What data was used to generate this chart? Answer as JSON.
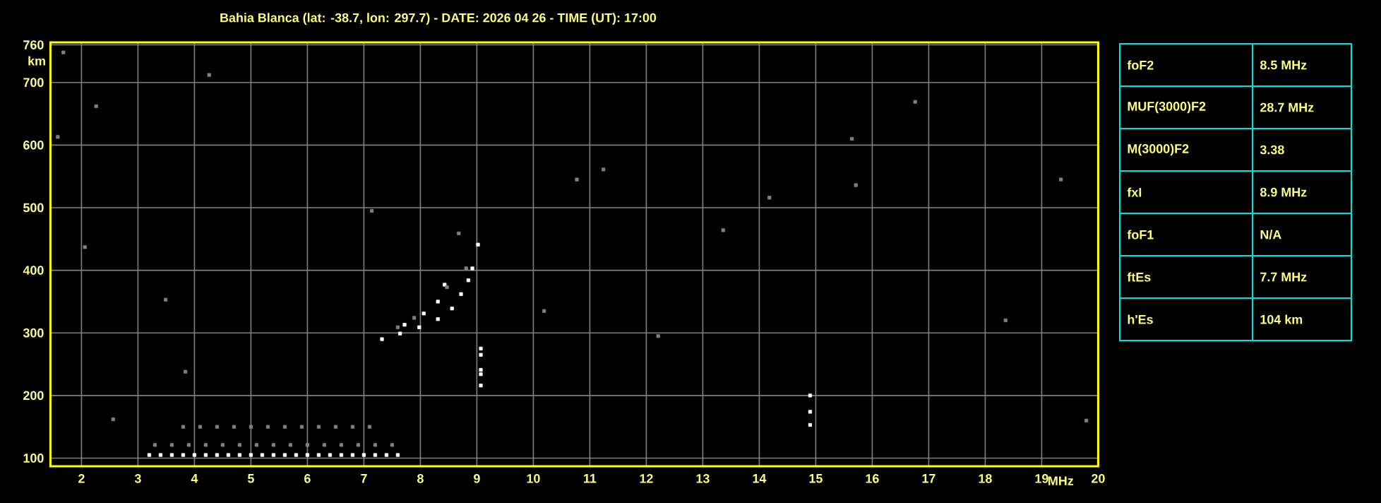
{
  "chart_data": [
    {
      "type": "scatter",
      "title": "Bahia Blanca (lat: -38.7, lon: 297.7) - DATE: 2026 04 26 - TIME (UT): 17:00",
      "xlabel": "MHz",
      "ylabel": "km",
      "xlim": [
        1.45,
        20
      ],
      "ylim": [
        87,
        764
      ],
      "xticks": [
        2,
        3,
        4,
        5,
        6,
        7,
        8,
        9,
        10,
        11,
        12,
        13,
        14,
        15,
        16,
        17,
        18,
        19,
        20
      ],
      "yticks": [
        100,
        200,
        300,
        400,
        500,
        600,
        700,
        760
      ],
      "grid": true,
      "marker": "square",
      "series": [
        {
          "color": "#ffffff",
          "x": [
            7.32,
            7.64,
            7.98,
            8.31,
            8.56,
            8.72,
            8.85,
            8.92,
            7.72,
            8.06,
            8.31,
            8.43,
            9.02,
            9.07,
            9.07,
            9.07,
            9.07,
            9.07,
            14.9,
            14.9,
            14.9,
            3.2,
            3.4,
            3.6,
            3.8,
            4.0,
            4.2,
            4.4,
            4.6,
            4.8,
            5.0,
            5.2,
            5.4,
            5.6,
            5.8,
            6.0,
            6.2,
            6.4,
            6.6,
            6.8,
            7.0,
            7.2,
            7.4,
            7.6
          ],
          "values": [
            290,
            299,
            309,
            322,
            339,
            362,
            384,
            403,
            313,
            331,
            350,
            377,
            441,
            275,
            265,
            241,
            234,
            216,
            200,
            174,
            153,
            105,
            105,
            105,
            105,
            105,
            105,
            105,
            105,
            105,
            105,
            105,
            105,
            105,
            105,
            105,
            105,
            105,
            105,
            105,
            105,
            105,
            105,
            105
          ]
        },
        {
          "color": "#808080",
          "x": [
            7.6,
            7.89,
            8.47,
            8.81,
            8.68,
            3.3,
            3.6,
            3.9,
            4.2,
            4.5,
            4.8,
            5.1,
            5.4,
            5.7,
            6.0,
            6.3,
            6.6,
            6.9,
            7.2,
            7.5,
            3.8,
            4.1,
            4.4,
            4.7,
            5.0,
            5.3,
            5.6,
            5.9,
            6.2,
            6.5,
            6.8,
            7.1,
            1.68,
            1.58,
            2.06,
            2.26,
            2.56,
            3.49,
            7.14,
            11.24,
            10.77,
            13.36,
            14.18,
            15.71,
            16.76,
            18.36,
            19.34,
            19.79,
            15.64,
            12.21,
            3.84,
            4.26,
            10.19
          ],
          "values": [
            309,
            324,
            373,
            403,
            459,
            121,
            121,
            121,
            121,
            121,
            121,
            121,
            121,
            121,
            121,
            121,
            121,
            121,
            121,
            121,
            150,
            150,
            150,
            150,
            150,
            150,
            150,
            150,
            150,
            150,
            150,
            150,
            748,
            613,
            437,
            662,
            162,
            353,
            495,
            561,
            545,
            464,
            516,
            536,
            669,
            320,
            545,
            160,
            610,
            295,
            238,
            712,
            335
          ]
        }
      ]
    },
    {
      "type": "other",
      "annotations": [
        "foF2",
        "8.5 MHz",
        "MUF(3000)F2",
        "28.7 MHz",
        "M(3000)F2",
        "3.38",
        "fxI",
        "8.9 MHz",
        "foF1",
        "N/A",
        "ftEs",
        "7.7 MHz",
        "h'Es",
        "104 km"
      ]
    }
  ]
}
